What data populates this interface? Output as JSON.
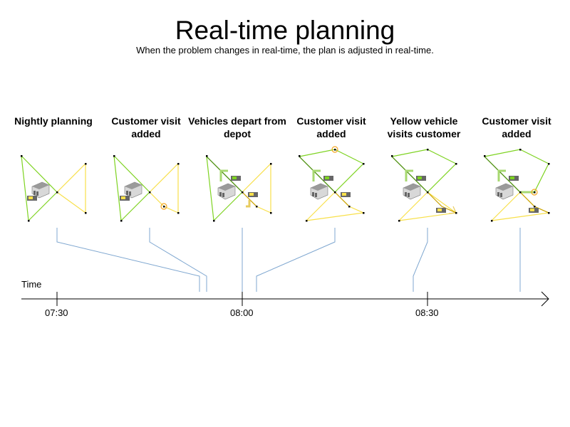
{
  "title": "Real-time planning",
  "subtitle": "When the problem changes in real-time, the plan is adjusted in real-time.",
  "steps": [
    {
      "label": "Nightly planning"
    },
    {
      "label": "Customer visit added"
    },
    {
      "label": "Vehicles depart from depot"
    },
    {
      "label": "Customer visit added"
    },
    {
      "label": "Yellow vehicle visits customer"
    },
    {
      "label": "Customer visit added"
    }
  ],
  "timeline": {
    "axis_label": "Time",
    "ticks": [
      "07:30",
      "08:00",
      "08:30"
    ]
  },
  "colors": {
    "green_route": "#7ed321",
    "yellow_route": "#f8e04a",
    "new_customer": "#f5a623",
    "connector": "#7fa7d0"
  }
}
